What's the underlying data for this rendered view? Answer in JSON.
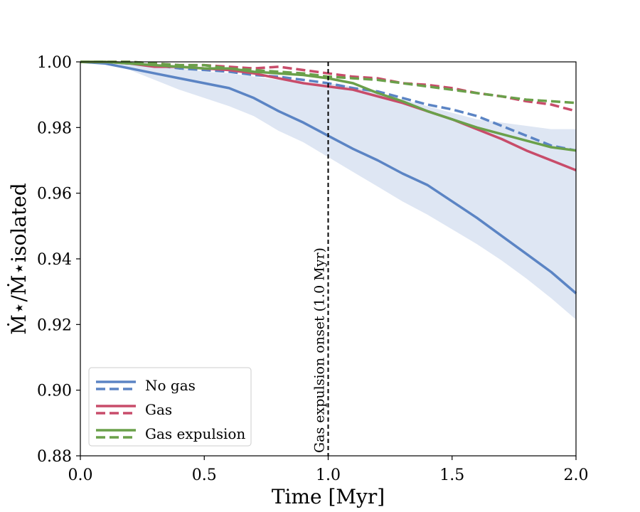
{
  "chart_data": {
    "type": "line",
    "title": "",
    "xlabel": "Time [Myr]",
    "ylabel": "Ṁ⋆/Ṁ⋆isolated",
    "xlim": [
      0.0,
      2.0
    ],
    "ylim": [
      0.88,
      1.0
    ],
    "x_ticks": [
      0.0,
      0.5,
      1.0,
      1.5,
      2.0
    ],
    "x_tick_labels": [
      "0.0",
      "0.5",
      "1.0",
      "1.5",
      "2.0"
    ],
    "y_ticks": [
      0.88,
      0.9,
      0.92,
      0.94,
      0.96,
      0.98,
      1.0
    ],
    "y_tick_labels": [
      "0.88",
      "0.90",
      "0.92",
      "0.94",
      "0.96",
      "0.98",
      "1.00"
    ],
    "grid": false,
    "legend_position": "lower-left",
    "legend": [
      {
        "label": "No gas",
        "color": "#5b84c4"
      },
      {
        "label": "Gas",
        "color": "#c84c6a"
      },
      {
        "label": "Gas expulsion",
        "color": "#6aa04a"
      }
    ],
    "annotation": {
      "x": 1.0,
      "label": "Gas expulsion onset (1.0 Myr)",
      "color": "#000000"
    },
    "x": [
      0.0,
      0.1,
      0.2,
      0.3,
      0.4,
      0.5,
      0.6,
      0.7,
      0.8,
      0.9,
      1.0,
      1.1,
      1.2,
      1.3,
      1.4,
      1.5,
      1.6,
      1.7,
      1.8,
      1.9,
      2.0
    ],
    "band": {
      "series": "No gas",
      "color": "#5b84c4",
      "upper": [
        1.0,
        1.0,
        0.9995,
        0.999,
        0.998,
        0.997,
        0.9965,
        0.9955,
        0.9945,
        0.9935,
        0.9935,
        0.9925,
        0.9905,
        0.9885,
        0.9865,
        0.9845,
        0.9825,
        0.9815,
        0.9805,
        0.9795,
        0.9795
      ],
      "lower": [
        1.0,
        0.9995,
        0.9975,
        0.9945,
        0.9915,
        0.989,
        0.9865,
        0.9835,
        0.979,
        0.9755,
        0.971,
        0.9665,
        0.962,
        0.9575,
        0.9535,
        0.949,
        0.9445,
        0.9395,
        0.934,
        0.928,
        0.9215
      ]
    },
    "series": [
      {
        "name": "No gas",
        "style": "solid",
        "color": "#5b84c4",
        "values": [
          1.0,
          0.9995,
          0.998,
          0.9965,
          0.995,
          0.9935,
          0.992,
          0.989,
          0.985,
          0.9815,
          0.9775,
          0.9735,
          0.97,
          0.966,
          0.9625,
          0.9575,
          0.9525,
          0.947,
          0.9415,
          0.936,
          0.9295
        ]
      },
      {
        "name": "No gas",
        "style": "dashed",
        "color": "#5b84c4",
        "values": [
          1.0,
          1.0,
          0.9995,
          0.999,
          0.998,
          0.9975,
          0.997,
          0.996,
          0.9955,
          0.9945,
          0.9935,
          0.992,
          0.991,
          0.989,
          0.987,
          0.9855,
          0.9835,
          0.9805,
          0.9775,
          0.9745,
          0.973
        ]
      },
      {
        "name": "Gas",
        "style": "solid",
        "color": "#c84c6a",
        "values": [
          1.0,
          1.0,
          0.9995,
          0.9985,
          0.9985,
          0.998,
          0.9975,
          0.9965,
          0.995,
          0.9935,
          0.9925,
          0.9915,
          0.9895,
          0.9875,
          0.985,
          0.9825,
          0.9795,
          0.9765,
          0.973,
          0.97,
          0.967
        ]
      },
      {
        "name": "Gas",
        "style": "dashed",
        "color": "#c84c6a",
        "values": [
          1.0,
          1.0,
          1.0,
          0.9995,
          0.999,
          0.999,
          0.9985,
          0.998,
          0.9985,
          0.9975,
          0.9965,
          0.9955,
          0.995,
          0.9935,
          0.993,
          0.992,
          0.9905,
          0.9895,
          0.988,
          0.987,
          0.985
        ]
      },
      {
        "name": "Gas expulsion",
        "style": "solid",
        "color": "#6aa04a",
        "values": [
          1.0,
          1.0,
          0.9995,
          0.999,
          0.9985,
          0.998,
          0.998,
          0.997,
          0.9965,
          0.996,
          0.995,
          0.9935,
          0.9905,
          0.988,
          0.985,
          0.9825,
          0.98,
          0.978,
          0.976,
          0.974,
          0.973
        ]
      },
      {
        "name": "Gas expulsion",
        "style": "dashed",
        "color": "#6aa04a",
        "values": [
          1.0,
          1.0,
          1.0,
          0.9995,
          0.999,
          0.999,
          0.998,
          0.9975,
          0.997,
          0.9965,
          0.9955,
          0.995,
          0.9945,
          0.9935,
          0.9925,
          0.9915,
          0.9905,
          0.9895,
          0.9885,
          0.988,
          0.9875
        ]
      }
    ]
  }
}
